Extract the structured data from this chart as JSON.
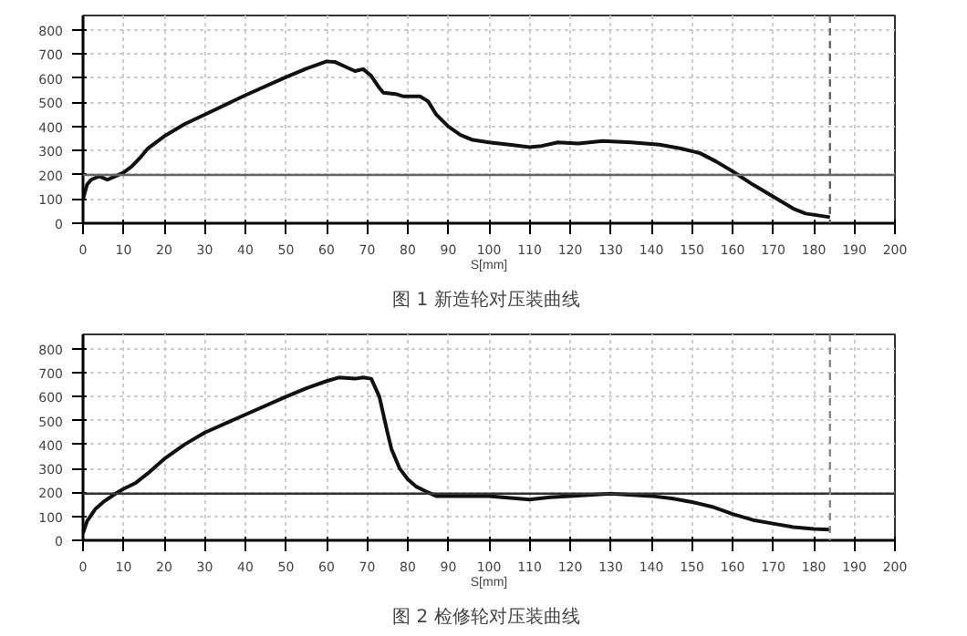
{
  "chart_data": [
    {
      "type": "line",
      "title": "图 1  新造轮对压装曲线",
      "xlabel": "S[mm]",
      "x": [
        0,
        1,
        2,
        4,
        6,
        8,
        10,
        12,
        14,
        16,
        20,
        25,
        30,
        40,
        50,
        55,
        60,
        62,
        65,
        67,
        69,
        71,
        73,
        74,
        77,
        79,
        83,
        85,
        87,
        90,
        93,
        96,
        100,
        105,
        110,
        113,
        117,
        122,
        128,
        135,
        142,
        147,
        152,
        156,
        160,
        165,
        170,
        175,
        178,
        184
      ],
      "series": [
        {
          "color": "#111111",
          "values": [
            100,
            160,
            180,
            195,
            180,
            195,
            210,
            235,
            270,
            310,
            360,
            410,
            450,
            530,
            605,
            640,
            670,
            668,
            645,
            630,
            638,
            610,
            560,
            540,
            535,
            525,
            525,
            505,
            450,
            400,
            365,
            345,
            335,
            325,
            315,
            320,
            335,
            330,
            340,
            335,
            325,
            310,
            290,
            255,
            215,
            160,
            110,
            60,
            40,
            25
          ]
        }
      ],
      "xlim": [
        0,
        200
      ],
      "xticks": [
        0,
        10,
        20,
        30,
        40,
        50,
        60,
        70,
        80,
        90,
        100,
        110,
        120,
        130,
        140,
        150,
        160,
        170,
        180,
        190,
        200
      ],
      "ylim": [
        0,
        860
      ],
      "yticks": [
        0,
        100,
        200,
        300,
        400,
        500,
        600,
        700,
        800
      ],
      "ref_lines": [
        {
          "axis": "y",
          "value": 200,
          "color": "#666666",
          "line_style": "solid"
        },
        {
          "axis": "x",
          "value": 184,
          "color": "#666666",
          "line_style": "dashed"
        }
      ],
      "grid": true,
      "marker": "none",
      "line_style": "solid"
    },
    {
      "type": "line",
      "title": "图 2  检修轮对压装曲线",
      "xlabel": "S[mm]",
      "x": [
        0,
        1,
        3,
        5,
        8,
        10,
        13,
        16,
        20,
        25,
        30,
        40,
        50,
        55,
        60,
        63,
        67,
        69,
        71,
        73,
        75,
        76,
        78,
        80,
        82,
        85,
        87,
        90,
        100,
        110,
        115,
        120,
        130,
        140,
        145,
        150,
        155,
        160,
        165,
        170,
        175,
        180,
        184
      ],
      "series": [
        {
          "color": "#111111",
          "values": [
            30,
            80,
            130,
            160,
            195,
            215,
            240,
            280,
            340,
            400,
            450,
            525,
            600,
            635,
            665,
            680,
            675,
            680,
            675,
            600,
            450,
            380,
            300,
            255,
            225,
            200,
            185,
            185,
            185,
            170,
            180,
            185,
            195,
            185,
            175,
            160,
            140,
            110,
            85,
            70,
            55,
            48,
            45
          ]
        }
      ],
      "xlim": [
        0,
        200
      ],
      "xticks": [
        0,
        10,
        20,
        30,
        40,
        50,
        60,
        70,
        80,
        90,
        100,
        110,
        120,
        130,
        140,
        150,
        160,
        170,
        180,
        190,
        200
      ],
      "ylim": [
        0,
        860
      ],
      "yticks": [
        0,
        100,
        200,
        300,
        400,
        500,
        600,
        700,
        800
      ],
      "ref_lines": [
        {
          "axis": "y",
          "value": 195,
          "color": "#333333",
          "line_style": "solid"
        },
        {
          "axis": "x",
          "value": 184,
          "color": "#888888",
          "line_style": "dashed"
        }
      ],
      "grid": true,
      "marker": "none",
      "line_style": "solid"
    }
  ]
}
